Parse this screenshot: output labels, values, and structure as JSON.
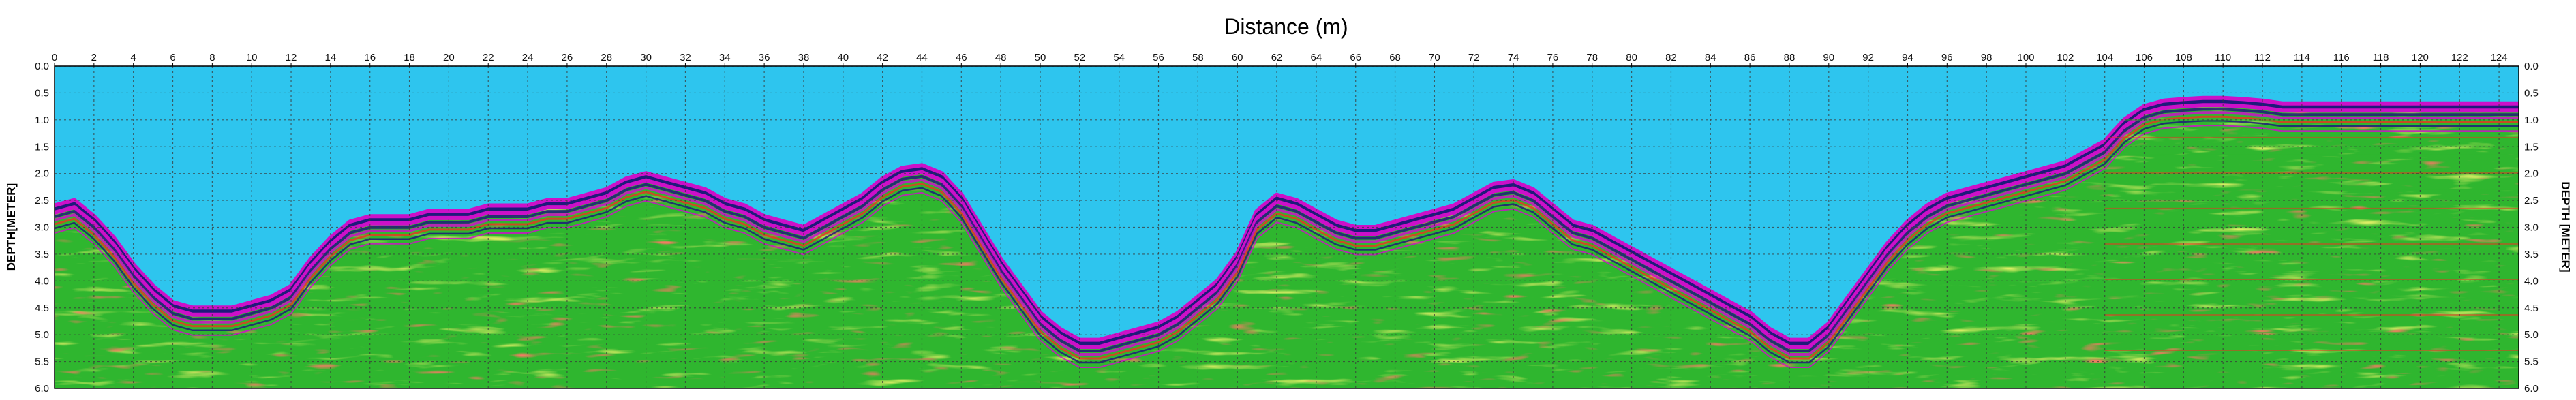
{
  "chart_data": {
    "type": "area",
    "title": "",
    "xlabel": "Distance (m)",
    "ylabel_left": "DEPTH[METER]",
    "ylabel_right": "DEPTH [METER]",
    "xlim": [
      0,
      125
    ],
    "ylim": [
      0,
      6.0
    ],
    "y_inverted": true,
    "grid": true,
    "x_ticks": [
      0,
      2,
      4,
      6,
      8,
      10,
      12,
      14,
      16,
      18,
      20,
      22,
      24,
      26,
      28,
      30,
      32,
      34,
      36,
      38,
      40,
      42,
      44,
      46,
      48,
      50,
      52,
      54,
      56,
      58,
      60,
      62,
      64,
      66,
      68,
      70,
      72,
      74,
      76,
      78,
      80,
      82,
      84,
      86,
      88,
      90,
      92,
      94,
      96,
      98,
      100,
      102,
      104,
      106,
      108,
      110,
      112,
      114,
      116,
      118,
      120,
      122,
      124
    ],
    "y_ticks": [
      "0.0",
      "0.5",
      "1.0",
      "1.5",
      "2.0",
      "2.5",
      "3.0",
      "3.5",
      "4.0",
      "4.5",
      "5.0",
      "5.5",
      "6.0"
    ],
    "colors": {
      "water": "#2ec5ee",
      "boundary": "#cc10c8",
      "deep": "#1e1a7a",
      "sediment_green": "#2fb62f",
      "sediment_yellow": "#eaea2a",
      "accent_red": "#e23a22"
    },
    "series": [
      {
        "x": [
          0,
          1,
          2,
          3,
          4,
          5,
          6,
          7,
          8,
          9,
          10,
          11,
          12,
          13,
          14,
          15,
          16,
          17,
          18,
          19,
          20,
          21,
          22,
          23,
          24,
          25,
          26,
          27,
          28,
          29,
          30,
          31,
          32,
          33,
          34,
          35,
          36,
          37,
          38,
          39,
          40,
          41,
          42,
          43,
          44,
          45,
          46,
          47,
          48,
          49,
          50,
          51,
          52,
          53,
          54,
          55,
          56,
          57,
          58,
          59,
          60,
          61,
          62,
          63,
          64,
          65,
          66,
          67,
          68,
          69,
          70,
          71,
          72,
          73,
          74,
          75,
          76,
          77,
          78,
          79,
          80,
          81,
          82,
          83,
          84,
          85,
          86,
          87,
          88,
          89,
          90,
          91,
          92,
          93,
          94,
          95,
          96,
          97,
          98,
          99,
          100,
          101,
          102,
          103,
          104,
          105,
          106,
          107,
          108,
          109,
          110,
          111,
          112,
          113,
          114,
          115,
          116,
          117,
          118,
          119,
          120,
          121,
          122,
          123,
          124,
          125
        ],
        "y": [
          2.6,
          2.5,
          2.8,
          3.2,
          3.7,
          4.1,
          4.4,
          4.5,
          4.5,
          4.5,
          4.4,
          4.3,
          4.1,
          3.6,
          3.2,
          2.9,
          2.8,
          2.8,
          2.8,
          2.7,
          2.7,
          2.7,
          2.6,
          2.6,
          2.6,
          2.5,
          2.5,
          2.4,
          2.3,
          2.1,
          2.0,
          2.1,
          2.2,
          2.3,
          2.5,
          2.6,
          2.8,
          2.9,
          3.0,
          2.8,
          2.6,
          2.4,
          2.1,
          1.9,
          1.85,
          2.0,
          2.4,
          3.0,
          3.6,
          4.1,
          4.6,
          4.9,
          5.1,
          5.1,
          5.0,
          4.9,
          4.8,
          4.6,
          4.3,
          4.0,
          3.5,
          2.7,
          2.4,
          2.5,
          2.7,
          2.9,
          3.0,
          3.0,
          2.9,
          2.8,
          2.7,
          2.6,
          2.4,
          2.2,
          2.15,
          2.3,
          2.6,
          2.9,
          3.0,
          3.2,
          3.4,
          3.6,
          3.8,
          4.0,
          4.2,
          4.4,
          4.6,
          4.9,
          5.1,
          5.1,
          4.8,
          4.3,
          3.8,
          3.3,
          2.9,
          2.6,
          2.4,
          2.3,
          2.2,
          2.1,
          2.0,
          1.9,
          1.8,
          1.6,
          1.4,
          1.0,
          0.75,
          0.65,
          0.62,
          0.6,
          0.6,
          0.62,
          0.65,
          0.7,
          0.7,
          0.7,
          0.7,
          0.7,
          0.7,
          0.7,
          0.7,
          0.7,
          0.7,
          0.7,
          0.7,
          0.7
        ]
      }
    ]
  }
}
